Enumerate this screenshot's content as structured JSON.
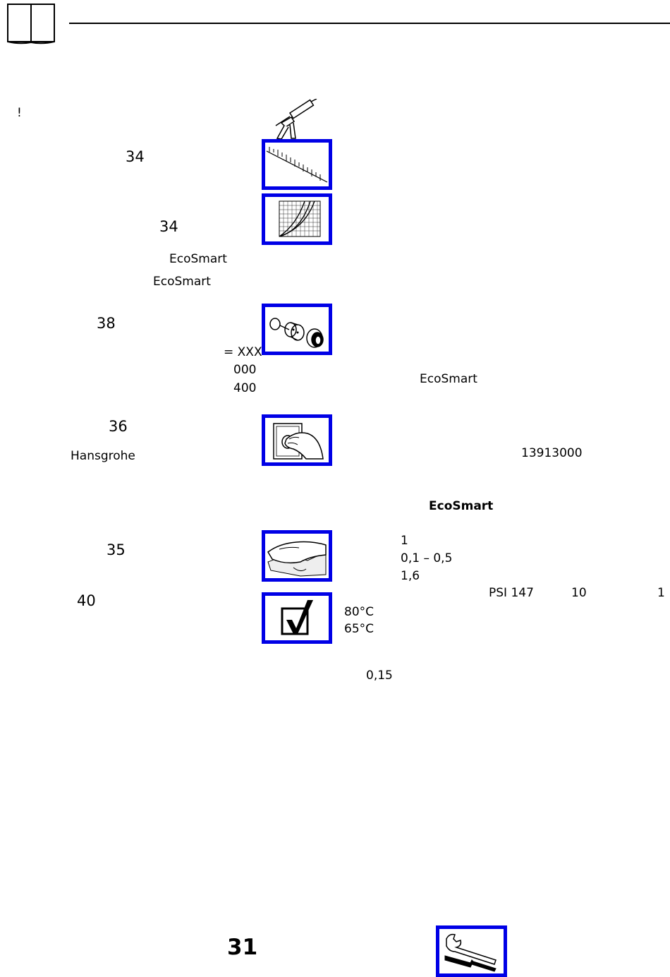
{
  "header": {
    "manual_icon": "open-book-icon"
  },
  "left_column": {
    "excl": "!",
    "ref_34a": "34",
    "ref_34b": "34",
    "ecosmart_1": "EcoSmart",
    "ecosmart_2": "EcoSmart",
    "ref_38": "38",
    "code_xxx": "= XXX",
    "code_000": "000",
    "code_400": "400",
    "ref_36": "36",
    "brand": "Hansgrohe",
    "ref_35": "35",
    "ref_40": "40"
  },
  "icons": {
    "caulk": "caulking-gun-icon",
    "ruler": "ruler-icon",
    "graph": "flow-graph-icon",
    "parts": "aerator-parts-icon",
    "hand_knob": "hand-turning-icon",
    "cloth": "cleaning-cloth-icon",
    "check": "checkbox-check-icon",
    "tools": "wrench-screwdriver-icon"
  },
  "right_column": {
    "ecosmart_3": "EcoSmart",
    "part_no": "13913000",
    "ecosmart_heading": "EcoSmart",
    "val_1": "1",
    "range": "0,1 – 0,5",
    "val_1_6": "1,6",
    "psi": "PSI 147",
    "val_10": "10",
    "val_1b": "1",
    "temp_80": "80°C",
    "temp_65": "65°C",
    "val_015": "0,15"
  },
  "footer": {
    "page_number": "31"
  }
}
